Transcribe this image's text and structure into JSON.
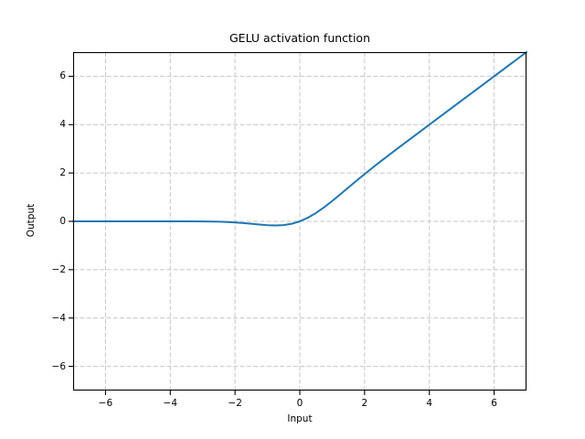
{
  "chart_data": {
    "type": "line",
    "title": "GELU activation function",
    "xlabel": "Input",
    "ylabel": "Output",
    "xlim": [
      -7,
      7
    ],
    "ylim": [
      -7,
      7
    ],
    "xticks": [
      -6,
      -4,
      -2,
      0,
      2,
      4,
      6
    ],
    "yticks": [
      -6,
      -4,
      -2,
      0,
      2,
      4,
      6
    ],
    "grid": true,
    "grid_linestyle": "dashed",
    "legend": false,
    "series": [
      {
        "name": "GELU",
        "color": "#1f77b4",
        "x": [
          -7,
          -6,
          -5,
          -4,
          -3.5,
          -3,
          -2.75,
          -2.5,
          -2.25,
          -2,
          -1.75,
          -1.5,
          -1.25,
          -1,
          -0.75,
          -0.5,
          -0.25,
          0,
          0.25,
          0.5,
          0.75,
          1,
          1.25,
          1.5,
          1.75,
          2,
          2.25,
          2.5,
          2.75,
          3,
          3.5,
          4,
          4.5,
          5,
          5.5,
          6,
          6.5,
          7
        ],
        "y": [
          0,
          0,
          0,
          -0.0001,
          -0.0008,
          -0.004,
          -0.0082,
          -0.0155,
          -0.0275,
          -0.0455,
          -0.0701,
          -0.1002,
          -0.1321,
          -0.1587,
          -0.17,
          -0.1543,
          -0.1003,
          0,
          0.1497,
          0.3457,
          0.58,
          0.8413,
          1.1179,
          1.3998,
          1.6799,
          1.9545,
          2.2225,
          2.4845,
          2.7418,
          2.996,
          3.4992,
          3.9999,
          4.5,
          5,
          5.5,
          6,
          6.5,
          7
        ]
      }
    ]
  },
  "style": {
    "background": "#ffffff",
    "line_color": "#1f77b4",
    "grid_color": "#c6c6c6",
    "axes_color": "#000000",
    "text_color": "#000000"
  }
}
